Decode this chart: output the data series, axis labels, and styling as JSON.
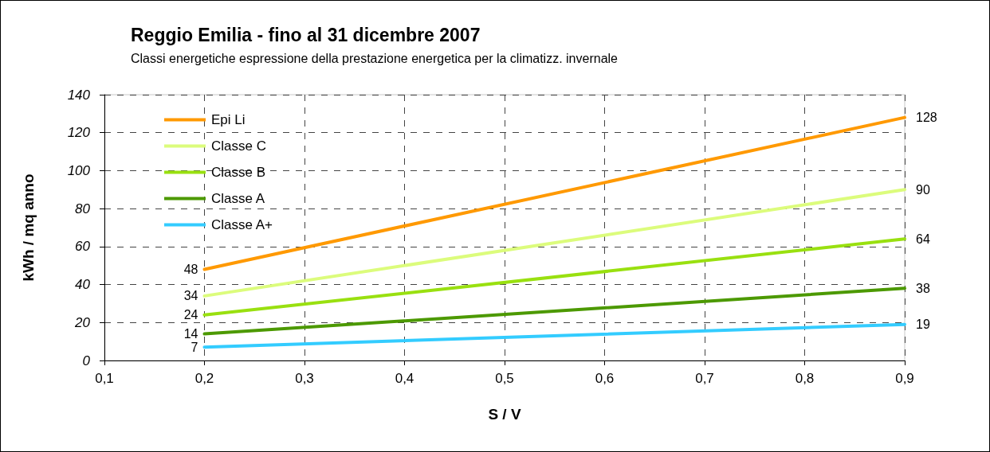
{
  "chart_data": {
    "type": "line",
    "title": "Reggio Emilia - fino al 31 dicembre 2007",
    "subtitle": "Classi energetiche espressione della prestazione energetica per la climatizz. invernale",
    "xlabel": "S / V",
    "ylabel": "kWh / mq anno",
    "x": [
      0.2,
      0.9
    ],
    "series": [
      {
        "name": "Epi Li",
        "color": "#ff9900",
        "values": [
          48,
          128
        ],
        "value_labels": [
          "48",
          "128"
        ]
      },
      {
        "name": "Classe C",
        "color": "#dcfc7c",
        "values": [
          34,
          90
        ],
        "value_labels": [
          "34",
          "90"
        ]
      },
      {
        "name": "Classe B",
        "color": "#99e010",
        "values": [
          24,
          64
        ],
        "value_labels": [
          "24",
          "64"
        ]
      },
      {
        "name": "Classe A",
        "color": "#4c9900",
        "values": [
          14,
          38
        ],
        "value_labels": [
          "14",
          "38"
        ]
      },
      {
        "name": "Classe A+",
        "color": "#33ccff",
        "values": [
          7,
          19
        ],
        "value_labels": [
          "7",
          "19"
        ]
      }
    ],
    "xlim": [
      0.1,
      0.9
    ],
    "xticks": [
      {
        "value": 0.1,
        "label": "0,1"
      },
      {
        "value": 0.2,
        "label": "0,2"
      },
      {
        "value": 0.3,
        "label": "0,3"
      },
      {
        "value": 0.4,
        "label": "0,4"
      },
      {
        "value": 0.5,
        "label": "0,5"
      },
      {
        "value": 0.6,
        "label": "0,6"
      },
      {
        "value": 0.7,
        "label": "0,7"
      },
      {
        "value": 0.8,
        "label": "0,8"
      },
      {
        "value": 0.9,
        "label": "0,9"
      }
    ],
    "ylim": [
      0,
      140
    ],
    "yticks": [
      0,
      20,
      40,
      60,
      80,
      100,
      120,
      140
    ],
    "grid": true,
    "legend": "top left",
    "marker": "none",
    "line_style": "solid"
  }
}
